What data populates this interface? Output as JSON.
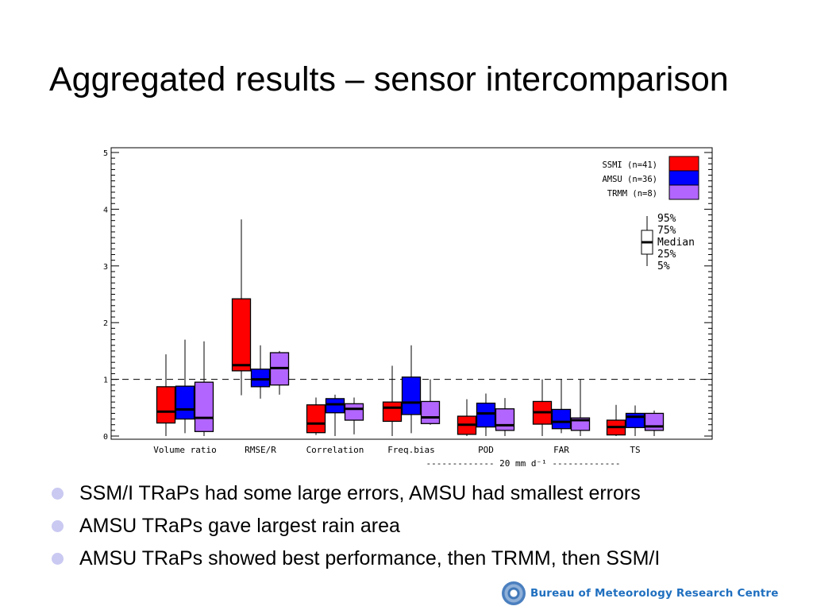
{
  "slide": {
    "title": "Aggregated results – sensor intercomparison",
    "bullets": [
      "SSM/I TRaPs had some large errors, AMSU had smallest errors",
      "AMSU TRaPs gave largest rain area",
      "AMSU TRaPs showed best performance, then TRMM, then SSM/I"
    ],
    "logo_text": "Bureau of Meteorology Research Centre"
  },
  "chart_data": {
    "type": "boxplot",
    "title": "",
    "xlabel": "",
    "ylabel": "",
    "ylim": [
      0,
      5
    ],
    "yticks": [
      "0",
      "1",
      "2",
      "3",
      "4",
      "5"
    ],
    "reference_line": 1,
    "categories": [
      "Volume ratio",
      "RMSE/R",
      "Correlation",
      "Freq.bias",
      "POD",
      "FAR",
      "TS"
    ],
    "group_label": "------------- 20 mm d⁻¹ -------------",
    "box_legend": [
      "95%",
      "75%",
      "Median",
      "25%",
      "5%"
    ],
    "legend_position": "top-right",
    "series": [
      {
        "name": "SSMI (n=41)",
        "color": "#ff0000",
        "values": [
          [
            0.0,
            0.23,
            0.43,
            0.87,
            1.44
          ],
          [
            0.72,
            1.15,
            1.25,
            2.42,
            3.82
          ],
          [
            0.02,
            0.06,
            0.22,
            0.55,
            0.68
          ],
          [
            0.0,
            0.26,
            0.5,
            0.6,
            1.24
          ],
          [
            0.0,
            0.03,
            0.2,
            0.35,
            0.65
          ],
          [
            0.0,
            0.21,
            0.42,
            0.61,
            1.0
          ],
          [
            0.0,
            0.02,
            0.16,
            0.28,
            0.55
          ]
        ]
      },
      {
        "name": "AMSU (n=36)",
        "color": "#0000ff",
        "values": [
          [
            0.05,
            0.3,
            0.47,
            0.88,
            1.7
          ],
          [
            0.66,
            0.87,
            1.0,
            1.18,
            1.6
          ],
          [
            0.0,
            0.41,
            0.56,
            0.66,
            0.73
          ],
          [
            0.05,
            0.38,
            0.59,
            1.04,
            1.6
          ],
          [
            0.0,
            0.16,
            0.4,
            0.58,
            0.75
          ],
          [
            0.05,
            0.13,
            0.25,
            0.47,
            1.0
          ],
          [
            0.0,
            0.15,
            0.34,
            0.4,
            0.54
          ]
        ]
      },
      {
        "name": "TRMM (n=8)",
        "color": "#b266ff",
        "values": [
          [
            0.0,
            0.08,
            0.32,
            0.95,
            1.67
          ],
          [
            0.73,
            0.9,
            1.2,
            1.47,
            1.5
          ],
          [
            0.03,
            0.28,
            0.48,
            0.57,
            0.68
          ],
          [
            0.2,
            0.22,
            0.33,
            0.61,
            1.0
          ],
          [
            0.0,
            0.1,
            0.19,
            0.48,
            0.67
          ],
          [
            0.0,
            0.1,
            0.28,
            0.32,
            1.0
          ],
          [
            0.0,
            0.1,
            0.17,
            0.4,
            0.45
          ]
        ]
      }
    ]
  }
}
